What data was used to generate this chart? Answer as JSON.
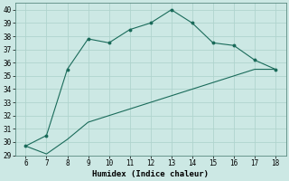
{
  "xlabel": "Humidex (Indice chaleur)",
  "x": [
    6,
    7,
    8,
    9,
    10,
    11,
    12,
    13,
    14,
    15,
    16,
    17,
    18
  ],
  "y_upper": [
    29.7,
    30.5,
    35.5,
    37.8,
    37.5,
    38.5,
    39.0,
    40.0,
    39.0,
    37.5,
    37.3,
    36.2,
    35.5
  ],
  "y_lower": [
    29.7,
    29.1,
    30.2,
    31.5,
    32.0,
    32.5,
    33.0,
    33.5,
    34.0,
    34.5,
    35.0,
    35.5,
    35.5
  ],
  "line_color": "#1a6b5a",
  "bg_color": "#cce8e4",
  "grid_color": "#b0d4ce",
  "xlim": [
    5.5,
    18.5
  ],
  "ylim": [
    29,
    40.5
  ],
  "xticks": [
    6,
    7,
    8,
    9,
    10,
    11,
    12,
    13,
    14,
    15,
    16,
    17,
    18
  ],
  "yticks": [
    29,
    30,
    31,
    32,
    33,
    34,
    35,
    36,
    37,
    38,
    39,
    40
  ]
}
